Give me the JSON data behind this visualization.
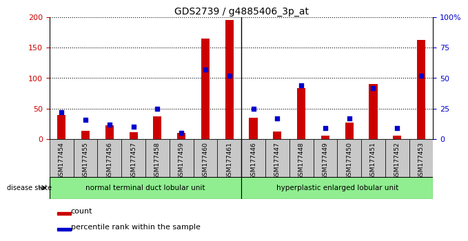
{
  "title": "GDS2739 / g4885406_3p_at",
  "samples": [
    "GSM177454",
    "GSM177455",
    "GSM177456",
    "GSM177457",
    "GSM177458",
    "GSM177459",
    "GSM177460",
    "GSM177461",
    "GSM177446",
    "GSM177447",
    "GSM177448",
    "GSM177449",
    "GSM177450",
    "GSM177451",
    "GSM177452",
    "GSM177453"
  ],
  "counts": [
    40,
    14,
    22,
    11,
    37,
    10,
    165,
    195,
    35,
    12,
    84,
    6,
    27,
    90,
    6,
    163
  ],
  "percentiles": [
    22,
    16,
    12,
    10,
    25,
    5,
    57,
    52,
    25,
    17,
    44,
    9,
    17,
    42,
    9,
    52
  ],
  "groups": [
    {
      "label": "normal terminal duct lobular unit",
      "start": 0,
      "end": 7,
      "color": "#90EE90"
    },
    {
      "label": "hyperplastic enlarged lobular unit",
      "start": 8,
      "end": 15,
      "color": "#90EE90"
    }
  ],
  "group_separator": 7.5,
  "left_ylim": [
    0,
    200
  ],
  "right_ylim": [
    0,
    100
  ],
  "left_yticks": [
    0,
    50,
    100,
    150,
    200
  ],
  "right_yticks": [
    0,
    25,
    50,
    75,
    100
  ],
  "right_yticklabels": [
    "0",
    "25",
    "50",
    "75",
    "100%"
  ],
  "bar_color": "#CC0000",
  "dot_color": "#0000CC",
  "background_color": "#ffffff",
  "label_bg_color": "#c8c8c8",
  "disease_state_label": "disease state",
  "legend_count": "count",
  "legend_percentile": "percentile rank within the sample"
}
